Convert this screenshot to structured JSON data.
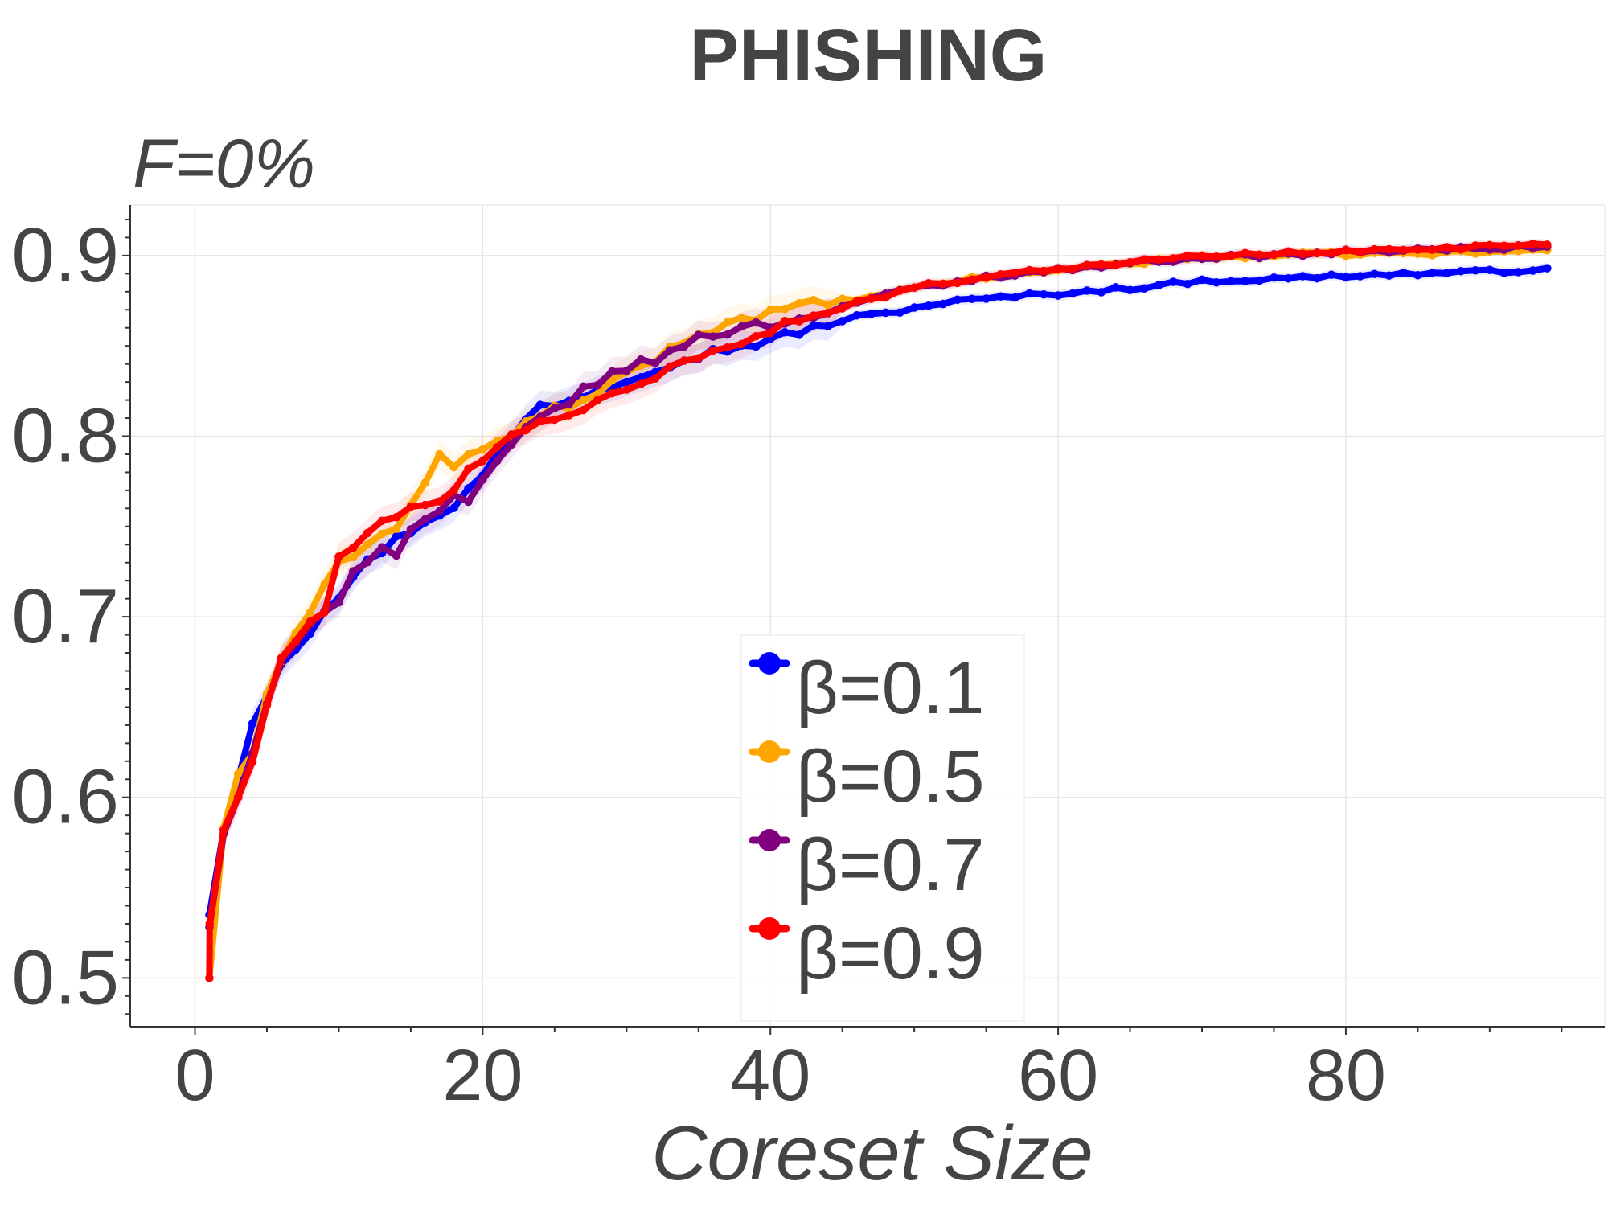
{
  "chart_data": {
    "type": "line",
    "title": "PHISHING",
    "subtitle": "F=0%",
    "xlabel": "Coreset Size",
    "ylabel": "",
    "xlim": [
      -4.5,
      98
    ],
    "ylim": [
      0.473,
      0.928
    ],
    "xticks": [
      0,
      20,
      40,
      60,
      80
    ],
    "yticks": [
      0.5,
      0.6,
      0.7,
      0.8,
      0.9
    ],
    "xtick_labels": [
      "0",
      "20",
      "40",
      "60",
      "80"
    ],
    "ytick_labels": [
      "0.5",
      "0.6",
      "0.7",
      "0.8",
      "0.9"
    ],
    "grid": true,
    "legend_position": "lower-center",
    "x_start": 1,
    "x_end": 94,
    "series": [
      {
        "name": "β=0.1",
        "color": "#0000ff",
        "anchors": [
          [
            1,
            0.535
          ],
          [
            2,
            0.582
          ],
          [
            3,
            0.61
          ],
          [
            4,
            0.642
          ],
          [
            5,
            0.658
          ],
          [
            6,
            0.675
          ],
          [
            7,
            0.683
          ],
          [
            8,
            0.693
          ],
          [
            9,
            0.705
          ],
          [
            10,
            0.712
          ],
          [
            11,
            0.722
          ],
          [
            12,
            0.73
          ],
          [
            13,
            0.737
          ],
          [
            14,
            0.743
          ],
          [
            15,
            0.748
          ],
          [
            16,
            0.753
          ],
          [
            18,
            0.762
          ],
          [
            20,
            0.778
          ],
          [
            22,
            0.8
          ],
          [
            24,
            0.817
          ],
          [
            26,
            0.82
          ],
          [
            28,
            0.826
          ],
          [
            30,
            0.832
          ],
          [
            32,
            0.838
          ],
          [
            35,
            0.845
          ],
          [
            38,
            0.85
          ],
          [
            40,
            0.853
          ],
          [
            42,
            0.858
          ],
          [
            44,
            0.862
          ],
          [
            46,
            0.866
          ],
          [
            48,
            0.868
          ],
          [
            50,
            0.871
          ],
          [
            52,
            0.874
          ],
          [
            55,
            0.876
          ],
          [
            58,
            0.878
          ],
          [
            60,
            0.879
          ],
          [
            65,
            0.882
          ],
          [
            70,
            0.886
          ],
          [
            75,
            0.887
          ],
          [
            80,
            0.889
          ],
          [
            85,
            0.89
          ],
          [
            90,
            0.891
          ],
          [
            94,
            0.893
          ]
        ]
      },
      {
        "name": "β=0.5",
        "color": "#ffa500",
        "anchors": [
          [
            1,
            0.5
          ],
          [
            2,
            0.583
          ],
          [
            3,
            0.613
          ],
          [
            4,
            0.625
          ],
          [
            5,
            0.655
          ],
          [
            6,
            0.673
          ],
          [
            7,
            0.693
          ],
          [
            8,
            0.703
          ],
          [
            9,
            0.72
          ],
          [
            10,
            0.73
          ],
          [
            11,
            0.733
          ],
          [
            12,
            0.74
          ],
          [
            13,
            0.745
          ],
          [
            14,
            0.75
          ],
          [
            15,
            0.76
          ],
          [
            16,
            0.775
          ],
          [
            17,
            0.788
          ],
          [
            18,
            0.785
          ],
          [
            20,
            0.792
          ],
          [
            22,
            0.8
          ],
          [
            24,
            0.813
          ],
          [
            26,
            0.817
          ],
          [
            28,
            0.822
          ],
          [
            30,
            0.835
          ],
          [
            32,
            0.843
          ],
          [
            35,
            0.857
          ],
          [
            38,
            0.865
          ],
          [
            40,
            0.868
          ],
          [
            42,
            0.872
          ],
          [
            45,
            0.875
          ],
          [
            48,
            0.878
          ],
          [
            50,
            0.882
          ],
          [
            52,
            0.885
          ],
          [
            55,
            0.888
          ],
          [
            58,
            0.89
          ],
          [
            60,
            0.892
          ],
          [
            65,
            0.896
          ],
          [
            70,
            0.899
          ],
          [
            75,
            0.9
          ],
          [
            80,
            0.901
          ],
          [
            85,
            0.901
          ],
          [
            90,
            0.902
          ],
          [
            94,
            0.903
          ]
        ]
      },
      {
        "name": "β=0.7",
        "color": "#800080",
        "anchors": [
          [
            1,
            0.528
          ],
          [
            2,
            0.58
          ],
          [
            3,
            0.6
          ],
          [
            4,
            0.625
          ],
          [
            5,
            0.65
          ],
          [
            6,
            0.675
          ],
          [
            7,
            0.683
          ],
          [
            8,
            0.695
          ],
          [
            9,
            0.705
          ],
          [
            10,
            0.71
          ],
          [
            11,
            0.725
          ],
          [
            12,
            0.732
          ],
          [
            13,
            0.74
          ],
          [
            14,
            0.733
          ],
          [
            15,
            0.748
          ],
          [
            16,
            0.755
          ],
          [
            17,
            0.758
          ],
          [
            18,
            0.765
          ],
          [
            19,
            0.762
          ],
          [
            20,
            0.775
          ],
          [
            22,
            0.795
          ],
          [
            24,
            0.81
          ],
          [
            26,
            0.82
          ],
          [
            28,
            0.83
          ],
          [
            30,
            0.838
          ],
          [
            32,
            0.842
          ],
          [
            35,
            0.855
          ],
          [
            38,
            0.86
          ],
          [
            40,
            0.862
          ],
          [
            42,
            0.865
          ],
          [
            45,
            0.872
          ],
          [
            48,
            0.878
          ],
          [
            50,
            0.882
          ],
          [
            52,
            0.884
          ],
          [
            55,
            0.888
          ],
          [
            58,
            0.891
          ],
          [
            60,
            0.892
          ],
          [
            65,
            0.896
          ],
          [
            70,
            0.899
          ],
          [
            75,
            0.9
          ],
          [
            80,
            0.902
          ],
          [
            85,
            0.903
          ],
          [
            90,
            0.904
          ],
          [
            94,
            0.905
          ]
        ]
      },
      {
        "name": "β=0.9",
        "color": "#ff0000",
        "anchors": [
          [
            1,
            0.5
          ],
          [
            1.02,
            0.53
          ],
          [
            2,
            0.582
          ],
          [
            3,
            0.6
          ],
          [
            4,
            0.62
          ],
          [
            5,
            0.65
          ],
          [
            6,
            0.678
          ],
          [
            7,
            0.685
          ],
          [
            8,
            0.695
          ],
          [
            9,
            0.705
          ],
          [
            10,
            0.733
          ],
          [
            11,
            0.738
          ],
          [
            12,
            0.745
          ],
          [
            13,
            0.752
          ],
          [
            14,
            0.757
          ],
          [
            15,
            0.762
          ],
          [
            16,
            0.763
          ],
          [
            17,
            0.765
          ],
          [
            18,
            0.768
          ],
          [
            19,
            0.78
          ],
          [
            20,
            0.785
          ],
          [
            22,
            0.8
          ],
          [
            24,
            0.81
          ],
          [
            26,
            0.81
          ],
          [
            28,
            0.82
          ],
          [
            30,
            0.825
          ],
          [
            32,
            0.833
          ],
          [
            34,
            0.843
          ],
          [
            36,
            0.848
          ],
          [
            38,
            0.85
          ],
          [
            40,
            0.858
          ],
          [
            42,
            0.865
          ],
          [
            44,
            0.87
          ],
          [
            46,
            0.874
          ],
          [
            48,
            0.878
          ],
          [
            50,
            0.882
          ],
          [
            52,
            0.885
          ],
          [
            55,
            0.888
          ],
          [
            58,
            0.892
          ],
          [
            60,
            0.893
          ],
          [
            65,
            0.896
          ],
          [
            70,
            0.9
          ],
          [
            75,
            0.901
          ],
          [
            80,
            0.902
          ],
          [
            85,
            0.904
          ],
          [
            90,
            0.905
          ],
          [
            94,
            0.906
          ]
        ]
      }
    ]
  }
}
